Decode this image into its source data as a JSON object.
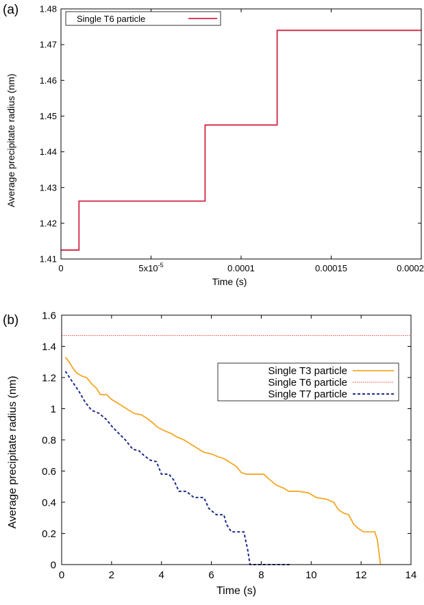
{
  "chart_data": [
    {
      "panel_label": "(a)",
      "type": "line",
      "step": true,
      "title": "",
      "xlabel": "Time (s)",
      "ylabel": "Average precipitate radius (nm)",
      "xlim": [
        0,
        0.0002
      ],
      "ylim": [
        1.41,
        1.48
      ],
      "xticks": [
        0,
        5e-05,
        0.0001,
        0.00015,
        0.0002
      ],
      "xtick_labels": [
        "0",
        "5x10",
        "0.0001",
        "0.00015",
        "0.0002"
      ],
      "xtick_exponent": "-5",
      "yticks": [
        1.41,
        1.42,
        1.43,
        1.44,
        1.45,
        1.46,
        1.47,
        1.48
      ],
      "ytick_labels": [
        "1.41",
        "1.42",
        "1.43",
        "1.44",
        "1.45",
        "1.46",
        "1.47",
        "1.48"
      ],
      "legend_position": "top-left",
      "series": [
        {
          "name": "Single T6 particle",
          "color": "#d2233f",
          "dash": "solid",
          "points": [
            [
              0,
              1.4125
            ],
            [
              1e-05,
              1.4125
            ],
            [
              1e-05,
              1.4262
            ],
            [
              8e-05,
              1.4262
            ],
            [
              8e-05,
              1.4475
            ],
            [
              0.00012,
              1.4475
            ],
            [
              0.00012,
              1.474
            ],
            [
              0.0002,
              1.474
            ]
          ]
        }
      ]
    },
    {
      "panel_label": "(b)",
      "type": "line",
      "title": "",
      "xlabel": "Time (s)",
      "ylabel": "Average precipitate radius (nm)",
      "xlim": [
        0,
        14
      ],
      "ylim": [
        0,
        1.6
      ],
      "xticks": [
        0,
        2,
        4,
        6,
        8,
        10,
        12,
        14
      ],
      "xtick_labels": [
        "0",
        "2",
        "4",
        "6",
        "8",
        "10",
        "12",
        "14"
      ],
      "yticks": [
        0,
        0.2,
        0.4,
        0.6,
        0.8,
        1,
        1.2,
        1.4,
        1.6
      ],
      "ytick_labels": [
        "0",
        "0.2",
        "0.4",
        "0.6",
        "0.8",
        "1",
        "1.2",
        "1.4",
        "1.6"
      ],
      "legend_position": "right",
      "series": [
        {
          "name": "Single T3 particle",
          "color": "#f5a623",
          "dash": "solid",
          "points": [
            [
              0.15,
              1.33
            ],
            [
              0.3,
              1.3
            ],
            [
              0.45,
              1.26
            ],
            [
              0.6,
              1.23
            ],
            [
              0.8,
              1.21
            ],
            [
              1.0,
              1.2
            ],
            [
              1.2,
              1.16
            ],
            [
              1.4,
              1.13
            ],
            [
              1.55,
              1.09
            ],
            [
              1.8,
              1.09
            ],
            [
              2.0,
              1.06
            ],
            [
              2.3,
              1.03
            ],
            [
              2.6,
              1.0
            ],
            [
              2.9,
              0.97
            ],
            [
              3.2,
              0.96
            ],
            [
              3.4,
              0.94
            ],
            [
              3.65,
              0.91
            ],
            [
              3.85,
              0.88
            ],
            [
              4.1,
              0.86
            ],
            [
              4.4,
              0.84
            ],
            [
              4.6,
              0.82
            ],
            [
              4.9,
              0.8
            ],
            [
              5.2,
              0.77
            ],
            [
              5.5,
              0.74
            ],
            [
              5.7,
              0.72
            ],
            [
              6.0,
              0.71
            ],
            [
              6.3,
              0.69
            ],
            [
              6.5,
              0.68
            ],
            [
              6.7,
              0.66
            ],
            [
              7.0,
              0.63
            ],
            [
              7.2,
              0.59
            ],
            [
              7.4,
              0.58
            ],
            [
              8.1,
              0.58
            ],
            [
              8.3,
              0.55
            ],
            [
              8.6,
              0.51
            ],
            [
              8.9,
              0.49
            ],
            [
              9.1,
              0.47
            ],
            [
              9.5,
              0.47
            ],
            [
              9.9,
              0.46
            ],
            [
              10.2,
              0.43
            ],
            [
              10.6,
              0.42
            ],
            [
              10.9,
              0.4
            ],
            [
              11.1,
              0.35
            ],
            [
              11.3,
              0.33
            ],
            [
              11.5,
              0.32
            ],
            [
              11.7,
              0.26
            ],
            [
              11.9,
              0.23
            ],
            [
              12.1,
              0.21
            ],
            [
              12.55,
              0.21
            ],
            [
              12.65,
              0.16
            ],
            [
              12.78,
              0.0
            ]
          ]
        },
        {
          "name": "Single T6 particle",
          "color": "#e8382f",
          "dash": "dotted",
          "points": [
            [
              0,
              1.47
            ],
            [
              14,
              1.47
            ]
          ]
        },
        {
          "name": "Single T7 particle",
          "color": "#1c2a8a",
          "dash": "dashed",
          "points": [
            [
              0.15,
              1.24
            ],
            [
              0.4,
              1.18
            ],
            [
              0.7,
              1.11
            ],
            [
              0.95,
              1.04
            ],
            [
              1.2,
              0.99
            ],
            [
              1.5,
              0.97
            ],
            [
              1.8,
              0.93
            ],
            [
              2.05,
              0.88
            ],
            [
              2.3,
              0.84
            ],
            [
              2.55,
              0.8
            ],
            [
              2.85,
              0.74
            ],
            [
              3.1,
              0.73
            ],
            [
              3.3,
              0.7
            ],
            [
              3.55,
              0.67
            ],
            [
              3.8,
              0.66
            ],
            [
              4.0,
              0.58
            ],
            [
              4.3,
              0.58
            ],
            [
              4.5,
              0.54
            ],
            [
              4.7,
              0.47
            ],
            [
              5.0,
              0.47
            ],
            [
              5.3,
              0.43
            ],
            [
              5.7,
              0.43
            ],
            [
              5.9,
              0.36
            ],
            [
              6.2,
              0.32
            ],
            [
              6.5,
              0.32
            ],
            [
              6.6,
              0.26
            ],
            [
              6.8,
              0.21
            ],
            [
              7.3,
              0.21
            ],
            [
              7.45,
              0.1
            ],
            [
              7.55,
              0.0
            ],
            [
              9.2,
              0.0
            ]
          ]
        }
      ]
    }
  ]
}
